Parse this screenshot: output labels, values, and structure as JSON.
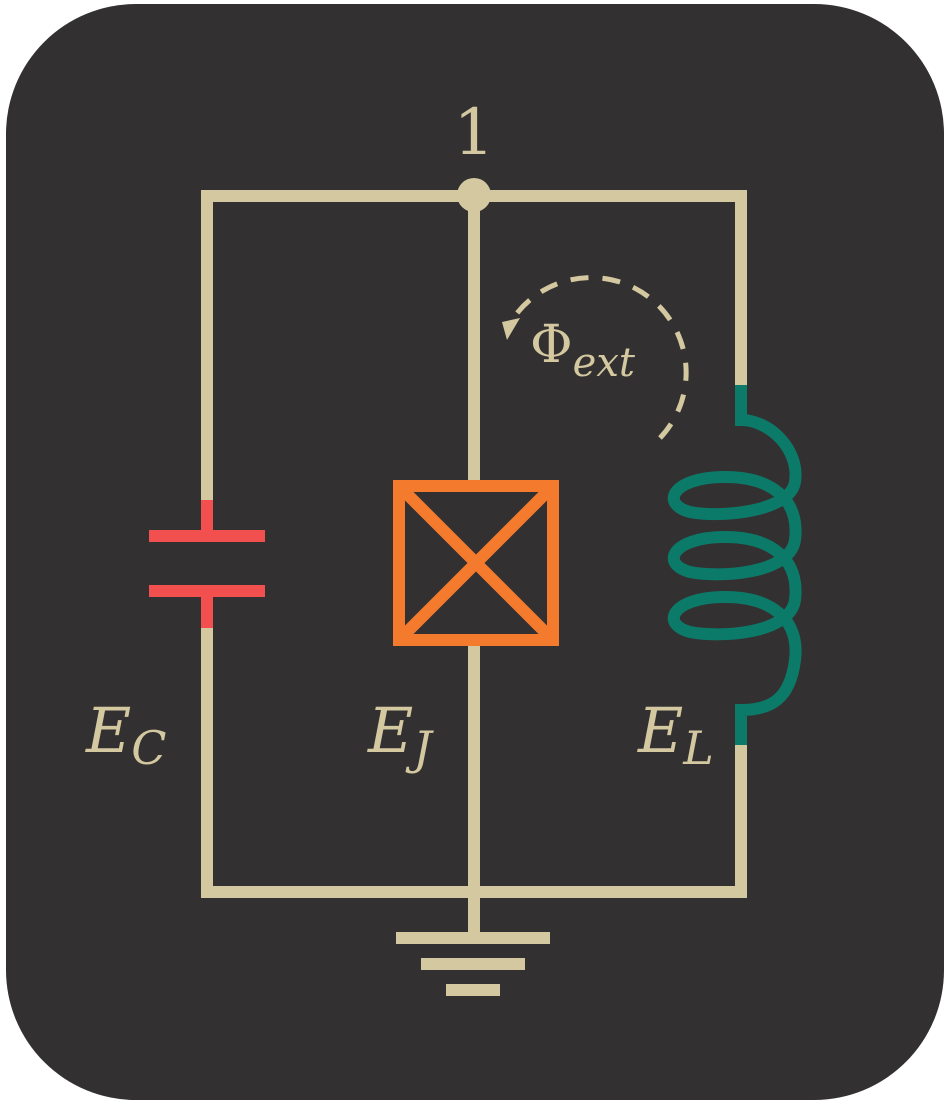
{
  "colors": {
    "background": "#323031",
    "wire": "#d4c8a0",
    "capacitor": "#f2504f",
    "junction": "#f47a2e",
    "inductor": "#0c7a69",
    "label": "#d4c8a0"
  },
  "node": {
    "label": "1"
  },
  "components": {
    "capacitor": {
      "symbol": "E",
      "subscript": "C"
    },
    "junction": {
      "symbol": "E",
      "subscript": "J"
    },
    "inductor": {
      "symbol": "E",
      "subscript": "L"
    }
  },
  "flux": {
    "symbol": "Φ",
    "subscript": "ext"
  }
}
